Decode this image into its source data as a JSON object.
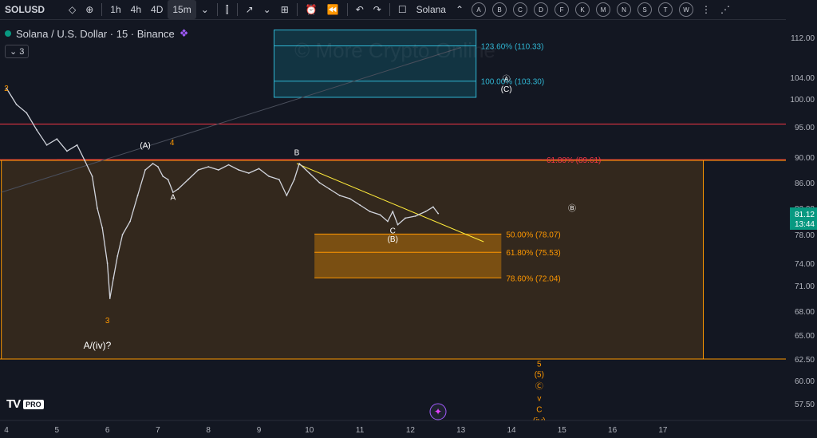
{
  "toolbar": {
    "symbol": "SOLUSD",
    "intervals": [
      "1h",
      "4h",
      "4D",
      "15m"
    ],
    "active_interval": "15m",
    "compare_label": "Solana",
    "letters": [
      "A",
      "B",
      "C",
      "D",
      "F",
      "K",
      "M",
      "N",
      "S",
      "T",
      "W"
    ]
  },
  "legend": {
    "title": "Solana / U.S. Dollar · 15 · Binance",
    "collapse": "3"
  },
  "watermark": {
    "line1": "© More Crypto Online",
    "line2": "..."
  },
  "chart_data": {
    "type": "candlestick-line",
    "price_axis": {
      "min": 55,
      "max": 115,
      "ticks": [
        112.0,
        104.0,
        100.0,
        95.0,
        90.0,
        86.0,
        82.0,
        78.0,
        74.0,
        71.0,
        68.0,
        65.0,
        62.5,
        60.0,
        57.5
      ],
      "tick_labels": [
        "112.00",
        "104.00",
        "100.00",
        "95.00",
        "90.00",
        "86.00",
        "82.00",
        "78.00",
        "74.00",
        "71.00",
        "68.00",
        "65.00",
        "62.50",
        "60.00",
        "57.50"
      ],
      "current_price": "81.12",
      "countdown": "13:44"
    },
    "time_axis": {
      "ticks": [
        4,
        5,
        6,
        7,
        8,
        9,
        10,
        11,
        12,
        13,
        14,
        15,
        16,
        17
      ],
      "tick_labels": [
        "4",
        "5",
        "6",
        "7",
        "8",
        "9",
        "10",
        "11",
        "12",
        "13",
        "14",
        "15",
        "16",
        "17"
      ]
    },
    "price_series": [
      [
        4.0,
        102.0
      ],
      [
        4.2,
        99.0
      ],
      [
        4.4,
        97.5
      ],
      [
        4.6,
        94.5
      ],
      [
        4.8,
        92.0
      ],
      [
        5.0,
        93.0
      ],
      [
        5.2,
        91.0
      ],
      [
        5.4,
        92.0
      ],
      [
        5.55,
        89.5
      ],
      [
        5.7,
        87.0
      ],
      [
        5.8,
        82.0
      ],
      [
        5.9,
        79.0
      ],
      [
        6.0,
        74.0
      ],
      [
        6.05,
        69.5
      ],
      [
        6.12,
        72.0
      ],
      [
        6.2,
        75.0
      ],
      [
        6.3,
        78.0
      ],
      [
        6.45,
        80.0
      ],
      [
        6.6,
        84.0
      ],
      [
        6.75,
        88.0
      ],
      [
        6.9,
        89.0
      ],
      [
        7.0,
        88.5
      ],
      [
        7.1,
        87.0
      ],
      [
        7.2,
        86.5
      ],
      [
        7.3,
        84.5
      ],
      [
        7.4,
        85.0
      ],
      [
        7.6,
        86.5
      ],
      [
        7.8,
        88.0
      ],
      [
        8.0,
        88.5
      ],
      [
        8.2,
        88.0
      ],
      [
        8.4,
        88.8
      ],
      [
        8.6,
        88.0
      ],
      [
        8.8,
        87.5
      ],
      [
        9.0,
        88.2
      ],
      [
        9.2,
        87.0
      ],
      [
        9.4,
        86.5
      ],
      [
        9.55,
        84.0
      ],
      [
        9.7,
        86.5
      ],
      [
        9.8,
        89.0
      ],
      [
        10.0,
        87.5
      ],
      [
        10.2,
        86.0
      ],
      [
        10.4,
        85.0
      ],
      [
        10.6,
        84.0
      ],
      [
        10.8,
        83.5
      ],
      [
        11.0,
        82.5
      ],
      [
        11.2,
        81.5
      ],
      [
        11.4,
        81.0
      ],
      [
        11.55,
        80.0
      ],
      [
        11.65,
        81.5
      ],
      [
        11.75,
        79.5
      ],
      [
        11.9,
        80.5
      ],
      [
        12.1,
        80.8
      ],
      [
        12.3,
        81.5
      ],
      [
        12.45,
        82.2
      ],
      [
        12.55,
        81.2
      ]
    ],
    "horizontal_lines": [
      {
        "price": 95.5,
        "color": "#f23645"
      },
      {
        "price": 89.61,
        "color": "#f23645"
      },
      {
        "price": 89.5,
        "color": "#ff9800"
      },
      {
        "price": 62.5,
        "color": "#ff9800"
      }
    ],
    "zones": [
      {
        "from": 62.5,
        "to": 89.5,
        "x_from": 3.9,
        "x_to": 17.8,
        "fill": "#3a2c1c",
        "border": "#ff9800"
      },
      {
        "from": 100.3,
        "to": 113.5,
        "x_from": 9.3,
        "x_to": 13.3,
        "fill": "#133a48",
        "border": "#2fb5d2"
      }
    ],
    "fib_levels": [
      {
        "label": "123.60% (110.33)",
        "price": 110.33,
        "color": "#2fb5d2",
        "x_from": 9.3,
        "x_to": 13.3
      },
      {
        "label": "100.00% (103.30)",
        "price": 103.3,
        "color": "#2fb5d2",
        "x_from": 9.3,
        "x_to": 13.3
      },
      {
        "label": "61.80% (89.61)",
        "price": 89.61,
        "color": "#f23645",
        "x_from": 5.0,
        "x_to": 14.6
      },
      {
        "label": "50.00% (78.07)",
        "price": 78.07,
        "color": "#ff9800",
        "x_from": 10.1,
        "x_to": 13.8
      },
      {
        "label": "61.80% (75.53)",
        "price": 75.53,
        "color": "#ff9800",
        "x_from": 10.1,
        "x_to": 13.8
      },
      {
        "label": "78.60% (72.04)",
        "price": 72.04,
        "color": "#ff9800",
        "x_from": 10.1,
        "x_to": 13.8
      }
    ],
    "trendlines": [
      {
        "from": [
          9.75,
          89.0
        ],
        "to": [
          13.45,
          77.0
        ],
        "color": "#ffeb3b"
      },
      {
        "from": [
          3.9,
          84.5
        ],
        "to": [
          13.0,
          110.0
        ],
        "color": "#4a4f5c"
      }
    ],
    "wave_labels": [
      {
        "text": "2",
        "x": 4.0,
        "price": 101.5,
        "color": "#ff9800"
      },
      {
        "text": "(A)",
        "x": 6.75,
        "price": 91.5,
        "color": "#ffffff"
      },
      {
        "text": "4",
        "x": 7.28,
        "price": 92.0,
        "color": "#ff9800"
      },
      {
        "text": "A",
        "x": 7.3,
        "price": 83.3,
        "color": "#ffffff"
      },
      {
        "text": "B",
        "x": 9.75,
        "price": 90.3,
        "color": "#ffffff"
      },
      {
        "text": "C",
        "x": 11.65,
        "price": 78.2,
        "color": "#ffffff"
      },
      {
        "text": "(B)",
        "x": 11.65,
        "price": 77.0,
        "color": "#ffffff"
      },
      {
        "text": "3",
        "x": 6.0,
        "price": 66.5,
        "color": "#ff9800"
      },
      {
        "text": "A/(iv)?",
        "x": 5.8,
        "price": 63.6,
        "color": "#ffffff"
      },
      {
        "text": "Ⓐ",
        "x": 13.9,
        "price": 103.2,
        "color": "#ffffff"
      },
      {
        "text": "(C)",
        "x": 13.9,
        "price": 101.3,
        "color": "#ffffff"
      },
      {
        "text": "Ⓑ",
        "x": 15.2,
        "price": 81.6,
        "color": "#ffffff"
      },
      {
        "text": "5",
        "x": 14.55,
        "price": 61.6,
        "color": "#ff9800"
      },
      {
        "text": "(5)",
        "x": 14.55,
        "price": 60.4,
        "color": "#ff9800"
      },
      {
        "text": "Ⓒ",
        "x": 14.55,
        "price": 59.1,
        "color": "#ff9800"
      },
      {
        "text": "v",
        "x": 14.55,
        "price": 57.8,
        "color": "#ff9800"
      },
      {
        "text": "C",
        "x": 14.55,
        "price": 56.6,
        "color": "#ff9800"
      },
      {
        "text": "(iv)",
        "x": 14.55,
        "price": 55.3,
        "color": "#ff9800"
      }
    ]
  },
  "logo": {
    "text": "TV",
    "badge": "PRO"
  }
}
